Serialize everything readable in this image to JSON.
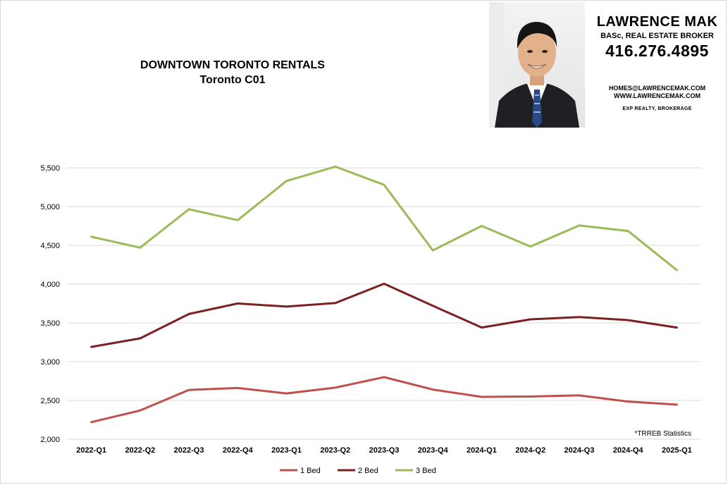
{
  "header": {
    "title": "DOWNTOWN TORONTO RENTALS",
    "subtitle": "Toronto C01"
  },
  "agent": {
    "name": "LAWRENCE MAK",
    "role": "BASc, REAL ESTATE BROKER",
    "phone": "416.276.4895",
    "email": "HOMES@LAWRENCEMAK.COM",
    "website": "WWW.LAWRENCEMAK.COM",
    "brokerage": "EXP REALTY, BROKERAGE"
  },
  "chart_data": {
    "type": "line",
    "categories": [
      "2022-Q1",
      "2022-Q2",
      "2022-Q3",
      "2022-Q4",
      "2023-Q1",
      "2023-Q2",
      "2023-Q3",
      "2023-Q4",
      "2024-Q1",
      "2024-Q2",
      "2024-Q3",
      "2024-Q4",
      "2025-Q1"
    ],
    "series": [
      {
        "name": "1 Bed",
        "color": "#c0504d",
        "values": [
          2220,
          2370,
          2635,
          2660,
          2590,
          2665,
          2800,
          2640,
          2545,
          2550,
          2565,
          2485,
          2445
        ]
      },
      {
        "name": "2 Bed",
        "color": "#7b2121",
        "values": [
          3190,
          3300,
          3615,
          3750,
          3710,
          3755,
          4005,
          3720,
          3440,
          3545,
          3575,
          3535,
          3440
        ]
      },
      {
        "name": "3 Bed",
        "color": "#9bbb59",
        "values": [
          4610,
          4470,
          4965,
          4825,
          5330,
          5515,
          5280,
          4435,
          4750,
          4485,
          4755,
          4685,
          4180
        ]
      }
    ],
    "yticks": [
      "2,000",
      "2,500",
      "3,000",
      "3,500",
      "4,000",
      "4,500",
      "5,000",
      "5,500"
    ],
    "ylim": [
      2000,
      5500
    ],
    "grid": true,
    "legend": "bottom",
    "source_note": "*TRREB Statistics"
  }
}
